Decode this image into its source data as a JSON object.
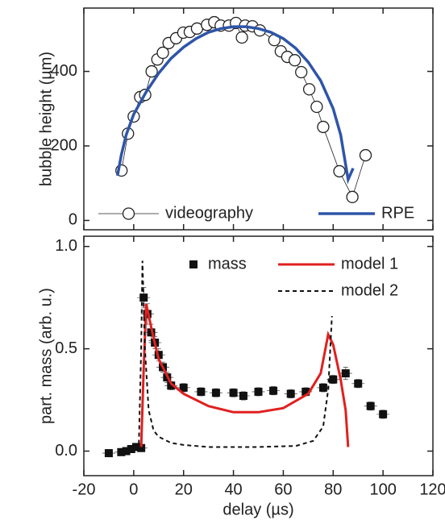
{
  "chart_data": [
    {
      "type": "line",
      "y_label": "bubble height (µm)",
      "xlim": [
        -20,
        120
      ],
      "ylim": [
        -25,
        570
      ],
      "yticks": [
        0,
        200,
        400
      ],
      "legend": "bottom",
      "series": [
        {
          "name": "videography",
          "color": "#222222",
          "marker": "circle",
          "line_width": 0.8,
          "x": [
            -4.9,
            -2.3,
            0,
            2.6,
            4.6,
            7.2,
            9.5,
            11.7,
            14,
            17,
            19.9,
            22.5,
            25.4,
            29.4,
            32.3,
            34.9,
            38.2,
            41,
            43.4,
            44.7,
            47.6,
            50.6,
            56.4,
            59,
            61.6,
            64.6,
            67.2,
            70.4,
            73.4,
            76,
            82.5,
            87.7,
            93
          ],
          "values": [
            134,
            233,
            279,
            331,
            337,
            400,
            432,
            450,
            476,
            489,
            504,
            506,
            515,
            525,
            532,
            523,
            523,
            530,
            491,
            523,
            521,
            510,
            484,
            454,
            439,
            430,
            398,
            352,
            305,
            251,
            132,
            63,
            175
          ]
        },
        {
          "name": "RPE",
          "color": "#2e55a8",
          "line_width": 3.5,
          "x": [
            -6.5,
            -5,
            -3,
            0,
            5,
            10,
            15,
            20,
            25,
            30,
            35,
            40,
            45,
            50,
            55,
            60,
            65,
            70,
            75,
            80,
            83,
            85,
            86,
            87,
            88
          ],
          "values": [
            120,
            175,
            230,
            285,
            345,
            395,
            435,
            465,
            488,
            505,
            515,
            520,
            520,
            515,
            505,
            488,
            462,
            425,
            375,
            300,
            230,
            150,
            110,
            125,
            140
          ]
        }
      ]
    },
    {
      "type": "line",
      "x_label": "delay (µs)",
      "y_label": "part. mass (arb. u.)",
      "xlim": [
        -20,
        120
      ],
      "ylim": [
        -0.12,
        1.05
      ],
      "xticks": [
        -20,
        0,
        20,
        40,
        60,
        80,
        100,
        120
      ],
      "yticks": [
        {
          "value": 0,
          "label": "0.0"
        },
        {
          "value": 0.5,
          "label": "0.5"
        },
        {
          "value": 1,
          "label": "1.0"
        }
      ],
      "legend": "top",
      "series": [
        {
          "name": "mass",
          "color": "#111111",
          "marker": "square",
          "line_width": 0,
          "x": [
            -10,
            -5,
            -3,
            -1,
            1,
            3,
            4,
            5.5,
            7,
            8.5,
            10,
            11.7,
            13.4,
            15,
            20,
            27,
            33,
            40,
            44,
            50,
            56,
            63,
            69,
            76,
            80,
            85,
            90,
            95,
            100
          ],
          "values": [
            -0.01,
            -0.005,
            0,
            0.01,
            0.02,
            0.015,
            0.75,
            0.67,
            0.58,
            0.53,
            0.47,
            0.41,
            0.36,
            0.32,
            0.31,
            0.29,
            0.285,
            0.285,
            0.27,
            0.29,
            0.295,
            0.28,
            0.29,
            0.31,
            0.35,
            0.38,
            0.33,
            0.22,
            0.18
          ],
          "errors": [
            0.015,
            0.015,
            0.015,
            0.015,
            0.015,
            0.015,
            0.05,
            0.05,
            0.04,
            0.03,
            0.03,
            0.025,
            0.025,
            0.02,
            0.02,
            0.02,
            0.02,
            0.02,
            0.02,
            0.02,
            0.02,
            0.02,
            0.02,
            0.02,
            0.02,
            0.03,
            0.02,
            0.02,
            0.02
          ]
        },
        {
          "name": "model 1",
          "color": "#e02020",
          "line_width": 3,
          "x": [
            3,
            4,
            5,
            8,
            10,
            15,
            20,
            30,
            40,
            50,
            60,
            70,
            75,
            78,
            80,
            83,
            85,
            86
          ],
          "values": [
            0.02,
            0.4,
            0.72,
            0.55,
            0.45,
            0.33,
            0.28,
            0.22,
            0.19,
            0.19,
            0.21,
            0.28,
            0.38,
            0.57,
            0.52,
            0.35,
            0.2,
            0.02
          ]
        },
        {
          "name": "model 2",
          "color": "#111111",
          "line_width": 2,
          "dash": true,
          "x": [
            2,
            3,
            3.5,
            4.5,
            6,
            8,
            10,
            15,
            20,
            30,
            50,
            65,
            72,
            76,
            78,
            79.5
          ],
          "values": [
            0,
            0.5,
            0.93,
            0.5,
            0.2,
            0.1,
            0.07,
            0.04,
            0.03,
            0.02,
            0.02,
            0.025,
            0.05,
            0.12,
            0.3,
            0.66
          ]
        }
      ]
    }
  ]
}
